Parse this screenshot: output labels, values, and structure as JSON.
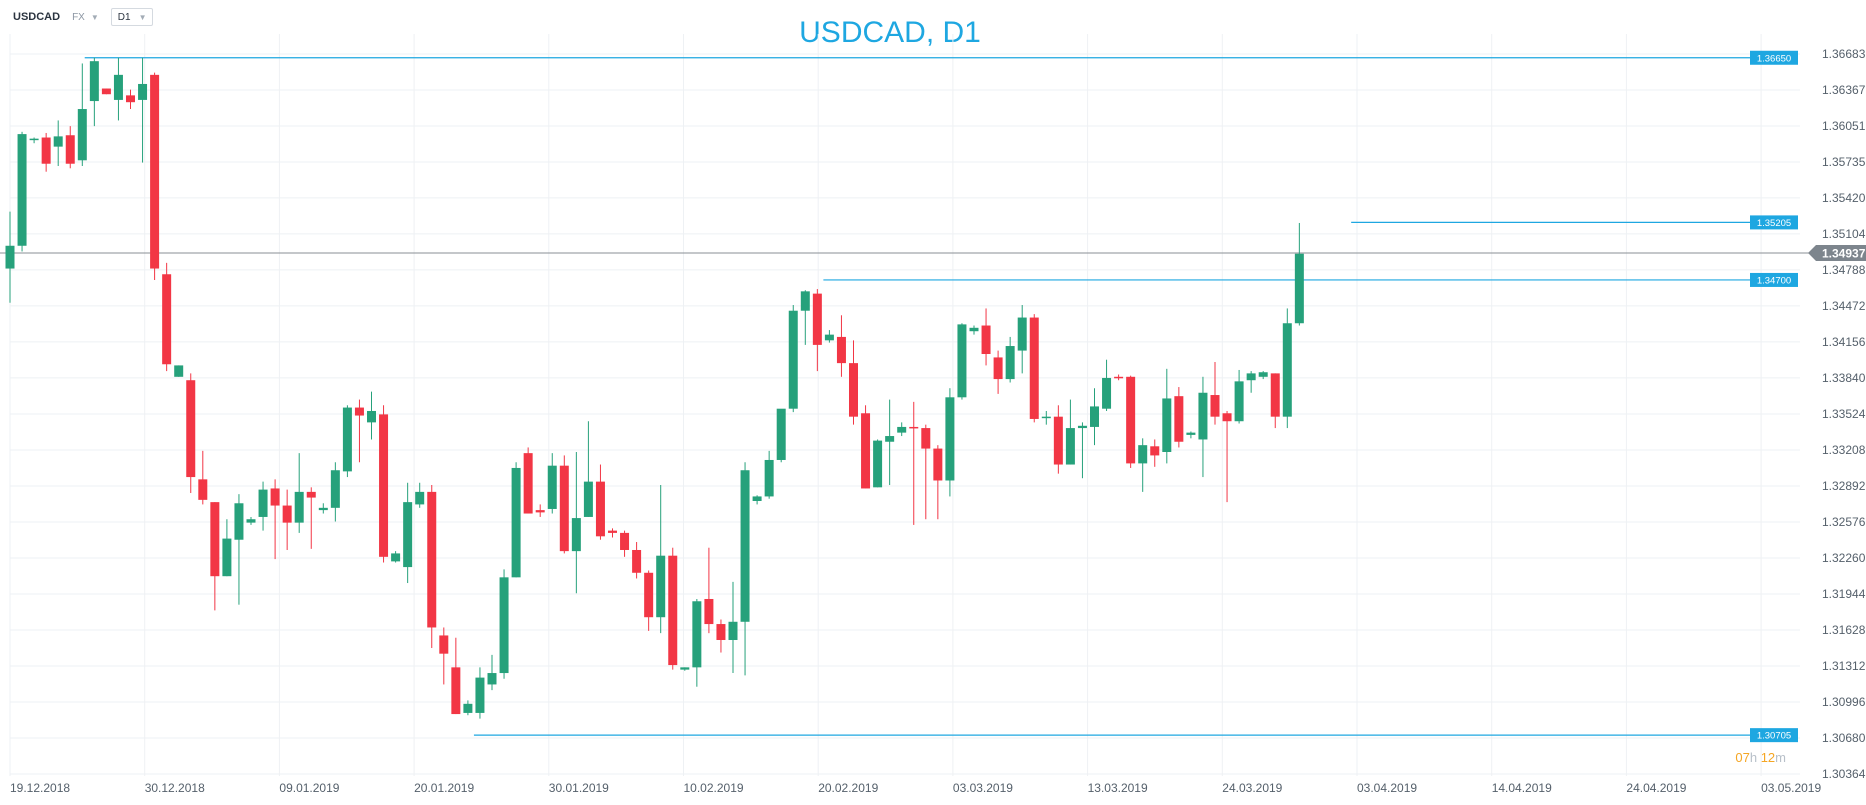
{
  "toolbar": {
    "symbol": "USDCAD",
    "market": "FX",
    "timeframe": "D1"
  },
  "countdown": {
    "hours": "07",
    "hours_unit": "h",
    "minutes": "12",
    "minutes_unit": "m"
  },
  "colors": {
    "bullish": "#26a17b",
    "bearish": "#f23645",
    "level_line": "#1ea7e1",
    "current_price_line": "#8a8f94",
    "grid": "#eef1f4",
    "title": "#1ea7e1"
  },
  "chart_data": {
    "type": "candlestick",
    "title": "USDCAD, D1",
    "y_axis_side": "right",
    "ylim": [
      1.30364,
      1.66683
    ],
    "y_ticks": [
      "1.36683",
      "1.36367",
      "1.36051",
      "1.35735",
      "1.35420",
      "1.35104",
      "1.34788",
      "1.34472",
      "1.34156",
      "1.33840",
      "1.33524",
      "1.33208",
      "1.32892",
      "1.32576",
      "1.32260",
      "1.31944",
      "1.31628",
      "1.31312",
      "1.30996",
      "1.30680",
      "1.30364"
    ],
    "x_tick_labels": [
      "19.12.2018",
      "30.12.2018",
      "09.01.2019",
      "20.01.2019",
      "30.01.2019",
      "10.02.2019",
      "20.02.2019",
      "03.03.2019",
      "13.03.2019",
      "24.03.2019",
      "03.04.2019",
      "14.04.2019",
      "24.04.2019",
      "03.05.2019"
    ],
    "current_price": "1.34937",
    "levels": [
      {
        "price": 1.3665,
        "label": "1.36650"
      },
      {
        "price": 1.35205,
        "label": "1.35205"
      },
      {
        "price": 1.347,
        "label": "1.34700"
      },
      {
        "price": 1.30705,
        "label": "1.30705"
      }
    ],
    "candles": [
      {
        "o": 1.348,
        "h": 1.353,
        "l": 1.345,
        "c": 1.35
      },
      {
        "o": 1.35,
        "h": 1.36,
        "l": 1.3495,
        "c": 1.3598
      },
      {
        "o": 1.3593,
        "h": 1.3595,
        "l": 1.359,
        "c": 1.3594
      },
      {
        "o": 1.3595,
        "h": 1.3599,
        "l": 1.3565,
        "c": 1.3572
      },
      {
        "o": 1.3587,
        "h": 1.361,
        "l": 1.357,
        "c": 1.3596
      },
      {
        "o": 1.3597,
        "h": 1.3605,
        "l": 1.3568,
        "c": 1.3572
      },
      {
        "o": 1.3575,
        "h": 1.366,
        "l": 1.357,
        "c": 1.362
      },
      {
        "o": 1.3627,
        "h": 1.3665,
        "l": 1.3605,
        "c": 1.3662
      },
      {
        "o": 1.3638,
        "h": 1.3638,
        "l": 1.3633,
        "c": 1.3633
      },
      {
        "o": 1.3628,
        "h": 1.3665,
        "l": 1.361,
        "c": 1.365
      },
      {
        "o": 1.3632,
        "h": 1.3637,
        "l": 1.362,
        "c": 1.3626
      },
      {
        "o": 1.3628,
        "h": 1.3665,
        "l": 1.3573,
        "c": 1.3642
      },
      {
        "o": 1.365,
        "h": 1.3652,
        "l": 1.347,
        "c": 1.348
      },
      {
        "o": 1.3475,
        "h": 1.3485,
        "l": 1.339,
        "c": 1.3396
      },
      {
        "o": 1.3385,
        "h": 1.3395,
        "l": 1.3385,
        "c": 1.3395
      },
      {
        "o": 1.3382,
        "h": 1.3388,
        "l": 1.3283,
        "c": 1.3297
      },
      {
        "o": 1.3295,
        "h": 1.332,
        "l": 1.3273,
        "c": 1.3277
      },
      {
        "o": 1.3275,
        "h": 1.3275,
        "l": 1.318,
        "c": 1.321
      },
      {
        "o": 1.321,
        "h": 1.326,
        "l": 1.321,
        "c": 1.3243
      },
      {
        "o": 1.3242,
        "h": 1.3282,
        "l": 1.3185,
        "c": 1.3274
      },
      {
        "o": 1.3257,
        "h": 1.3262,
        "l": 1.3255,
        "c": 1.326
      },
      {
        "o": 1.3262,
        "h": 1.3293,
        "l": 1.325,
        "c": 1.3286
      },
      {
        "o": 1.3287,
        "h": 1.3295,
        "l": 1.3225,
        "c": 1.3272
      },
      {
        "o": 1.3272,
        "h": 1.3286,
        "l": 1.3233,
        "c": 1.3257
      },
      {
        "o": 1.3257,
        "h": 1.3318,
        "l": 1.3248,
        "c": 1.3284
      },
      {
        "o": 1.3284,
        "h": 1.3288,
        "l": 1.3234,
        "c": 1.3279
      },
      {
        "o": 1.3268,
        "h": 1.3274,
        "l": 1.3265,
        "c": 1.327
      },
      {
        "o": 1.327,
        "h": 1.331,
        "l": 1.3258,
        "c": 1.3303
      },
      {
        "o": 1.3302,
        "h": 1.336,
        "l": 1.3297,
        "c": 1.3358
      },
      {
        "o": 1.3358,
        "h": 1.3365,
        "l": 1.331,
        "c": 1.3351
      },
      {
        "o": 1.3345,
        "h": 1.3372,
        "l": 1.333,
        "c": 1.3355
      },
      {
        "o": 1.3352,
        "h": 1.336,
        "l": 1.3222,
        "c": 1.3227
      },
      {
        "o": 1.3223,
        "h": 1.3232,
        "l": 1.3222,
        "c": 1.323
      },
      {
        "o": 1.3218,
        "h": 1.3292,
        "l": 1.3204,
        "c": 1.3275
      },
      {
        "o": 1.3273,
        "h": 1.3292,
        "l": 1.327,
        "c": 1.3284
      },
      {
        "o": 1.3284,
        "h": 1.329,
        "l": 1.3147,
        "c": 1.3165
      },
      {
        "o": 1.3158,
        "h": 1.3165,
        "l": 1.3115,
        "c": 1.3142
      },
      {
        "o": 1.313,
        "h": 1.3156,
        "l": 1.3089,
        "c": 1.3089
      },
      {
        "o": 1.309,
        "h": 1.3101,
        "l": 1.3088,
        "c": 1.3098
      },
      {
        "o": 1.309,
        "h": 1.313,
        "l": 1.3085,
        "c": 1.3121
      },
      {
        "o": 1.3115,
        "h": 1.3141,
        "l": 1.311,
        "c": 1.3125
      },
      {
        "o": 1.3125,
        "h": 1.3216,
        "l": 1.312,
        "c": 1.3209
      },
      {
        "o": 1.3209,
        "h": 1.331,
        "l": 1.3209,
        "c": 1.3305
      },
      {
        "o": 1.3318,
        "h": 1.3323,
        "l": 1.3265,
        "c": 1.3265
      },
      {
        "o": 1.3268,
        "h": 1.3273,
        "l": 1.3262,
        "c": 1.3266
      },
      {
        "o": 1.3269,
        "h": 1.3318,
        "l": 1.3265,
        "c": 1.3307
      },
      {
        "o": 1.3307,
        "h": 1.3316,
        "l": 1.323,
        "c": 1.3232
      },
      {
        "o": 1.3232,
        "h": 1.3319,
        "l": 1.3195,
        "c": 1.3261
      },
      {
        "o": 1.3262,
        "h": 1.3346,
        "l": 1.3262,
        "c": 1.3293
      },
      {
        "o": 1.3293,
        "h": 1.3308,
        "l": 1.3242,
        "c": 1.3245
      },
      {
        "o": 1.325,
        "h": 1.3252,
        "l": 1.3244,
        "c": 1.3248
      },
      {
        "o": 1.3248,
        "h": 1.325,
        "l": 1.3227,
        "c": 1.3233
      },
      {
        "o": 1.3233,
        "h": 1.324,
        "l": 1.3208,
        "c": 1.3213
      },
      {
        "o": 1.3213,
        "h": 1.3215,
        "l": 1.3162,
        "c": 1.3174
      },
      {
        "o": 1.3174,
        "h": 1.329,
        "l": 1.316,
        "c": 1.3228
      },
      {
        "o": 1.3228,
        "h": 1.3235,
        "l": 1.3128,
        "c": 1.3132
      },
      {
        "o": 1.3128,
        "h": 1.313,
        "l": 1.3127,
        "c": 1.313
      },
      {
        "o": 1.313,
        "h": 1.319,
        "l": 1.3113,
        "c": 1.3188
      },
      {
        "o": 1.319,
        "h": 1.3235,
        "l": 1.316,
        "c": 1.3168
      },
      {
        "o": 1.3168,
        "h": 1.3172,
        "l": 1.3143,
        "c": 1.3154
      },
      {
        "o": 1.3154,
        "h": 1.3205,
        "l": 1.3125,
        "c": 1.317
      },
      {
        "o": 1.317,
        "h": 1.331,
        "l": 1.3123,
        "c": 1.3303
      },
      {
        "o": 1.3276,
        "h": 1.3281,
        "l": 1.3273,
        "c": 1.328
      },
      {
        "o": 1.328,
        "h": 1.332,
        "l": 1.3278,
        "c": 1.3312
      },
      {
        "o": 1.3312,
        "h": 1.3352,
        "l": 1.331,
        "c": 1.3357
      },
      {
        "o": 1.3357,
        "h": 1.3448,
        "l": 1.3354,
        "c": 1.3443
      },
      {
        "o": 1.3443,
        "h": 1.3461,
        "l": 1.3413,
        "c": 1.346
      },
      {
        "o": 1.3458,
        "h": 1.3462,
        "l": 1.339,
        "c": 1.3413
      },
      {
        "o": 1.3417,
        "h": 1.3426,
        "l": 1.3415,
        "c": 1.3422
      },
      {
        "o": 1.342,
        "h": 1.3439,
        "l": 1.3385,
        "c": 1.3397
      },
      {
        "o": 1.3397,
        "h": 1.3417,
        "l": 1.3343,
        "c": 1.335
      },
      {
        "o": 1.3353,
        "h": 1.336,
        "l": 1.3287,
        "c": 1.3287
      },
      {
        "o": 1.3288,
        "h": 1.333,
        "l": 1.3288,
        "c": 1.3329
      },
      {
        "o": 1.3328,
        "h": 1.3365,
        "l": 1.329,
        "c": 1.3333
      },
      {
        "o": 1.3336,
        "h": 1.3345,
        "l": 1.3333,
        "c": 1.3341
      },
      {
        "o": 1.3341,
        "h": 1.3363,
        "l": 1.3255,
        "c": 1.334
      },
      {
        "o": 1.334,
        "h": 1.3343,
        "l": 1.326,
        "c": 1.3322
      },
      {
        "o": 1.3322,
        "h": 1.3325,
        "l": 1.326,
        "c": 1.3294
      },
      {
        "o": 1.3294,
        "h": 1.3375,
        "l": 1.328,
        "c": 1.3367
      },
      {
        "o": 1.3367,
        "h": 1.3432,
        "l": 1.3365,
        "c": 1.3431
      },
      {
        "o": 1.3425,
        "h": 1.343,
        "l": 1.3422,
        "c": 1.3428
      },
      {
        "o": 1.343,
        "h": 1.3445,
        "l": 1.3395,
        "c": 1.3405
      },
      {
        "o": 1.3402,
        "h": 1.3408,
        "l": 1.337,
        "c": 1.3383
      },
      {
        "o": 1.3383,
        "h": 1.342,
        "l": 1.338,
        "c": 1.3412
      },
      {
        "o": 1.3408,
        "h": 1.3448,
        "l": 1.3388,
        "c": 1.3437
      },
      {
        "o": 1.3437,
        "h": 1.344,
        "l": 1.3345,
        "c": 1.3348
      },
      {
        "o": 1.3349,
        "h": 1.3355,
        "l": 1.3343,
        "c": 1.335
      },
      {
        "o": 1.335,
        "h": 1.336,
        "l": 1.33,
        "c": 1.3308
      },
      {
        "o": 1.3308,
        "h": 1.3365,
        "l": 1.3308,
        "c": 1.334
      },
      {
        "o": 1.334,
        "h": 1.3345,
        "l": 1.3296,
        "c": 1.3342
      },
      {
        "o": 1.3341,
        "h": 1.3375,
        "l": 1.3325,
        "c": 1.3359
      },
      {
        "o": 1.3357,
        "h": 1.34,
        "l": 1.3355,
        "c": 1.3384
      },
      {
        "o": 1.3385,
        "h": 1.3387,
        "l": 1.3382,
        "c": 1.3384
      },
      {
        "o": 1.3385,
        "h": 1.3386,
        "l": 1.3305,
        "c": 1.3309
      },
      {
        "o": 1.3309,
        "h": 1.3331,
        "l": 1.3284,
        "c": 1.3325
      },
      {
        "o": 1.3324,
        "h": 1.333,
        "l": 1.3306,
        "c": 1.3316
      },
      {
        "o": 1.3319,
        "h": 1.3392,
        "l": 1.3309,
        "c": 1.3366
      },
      {
        "o": 1.3368,
        "h": 1.3376,
        "l": 1.3323,
        "c": 1.3328
      },
      {
        "o": 1.3334,
        "h": 1.3337,
        "l": 1.3331,
        "c": 1.3336
      },
      {
        "o": 1.333,
        "h": 1.3385,
        "l": 1.3297,
        "c": 1.3371
      },
      {
        "o": 1.3369,
        "h": 1.3398,
        "l": 1.3343,
        "c": 1.335
      },
      {
        "o": 1.3353,
        "h": 1.3355,
        "l": 1.3275,
        "c": 1.3346
      },
      {
        "o": 1.3346,
        "h": 1.3391,
        "l": 1.3344,
        "c": 1.3381
      },
      {
        "o": 1.3382,
        "h": 1.339,
        "l": 1.3371,
        "c": 1.3388
      },
      {
        "o": 1.3385,
        "h": 1.339,
        "l": 1.3383,
        "c": 1.3389
      },
      {
        "o": 1.3388,
        "h": 1.3388,
        "l": 1.334,
        "c": 1.335
      },
      {
        "o": 1.335,
        "h": 1.3445,
        "l": 1.334,
        "c": 1.3432
      },
      {
        "o": 1.3432,
        "h": 1.352,
        "l": 1.343,
        "c": 1.3493
      }
    ]
  }
}
